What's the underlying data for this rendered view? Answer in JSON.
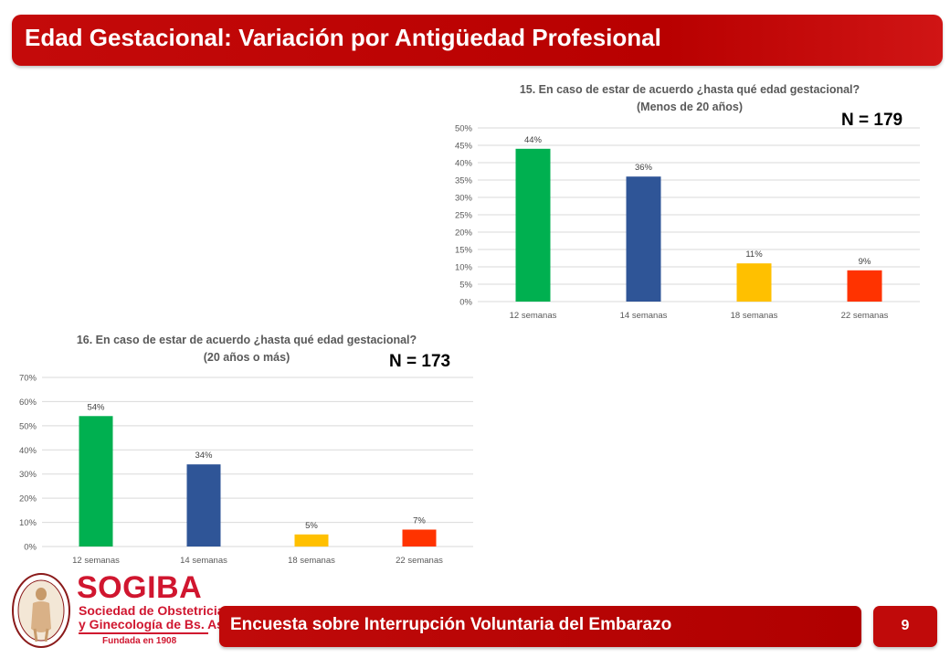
{
  "header": {
    "title": "Edad Gestacional: Variación por Antigüedad Profesional"
  },
  "chart_data": [
    {
      "type": "bar",
      "title_line1": "15. En caso de estar de acuerdo ¿hasta qué edad gestacional?",
      "title_line2": "(Menos de 20 años)",
      "n_label": "N = 179",
      "categories": [
        "12 semanas",
        "14 semanas",
        "18 semanas",
        "22 semanas"
      ],
      "values": [
        44,
        36,
        11,
        9
      ],
      "value_labels": [
        "44%",
        "36%",
        "11%",
        "9%"
      ],
      "colors": [
        "#00b050",
        "#2f5597",
        "#ffc000",
        "#ff3300"
      ],
      "ylim": [
        0,
        50
      ],
      "yticks": [
        0,
        5,
        10,
        15,
        20,
        25,
        30,
        35,
        40,
        45,
        50
      ],
      "ytick_labels": [
        "0%",
        "5%",
        "10%",
        "15%",
        "20%",
        "25%",
        "30%",
        "35%",
        "40%",
        "45%",
        "50%"
      ],
      "grid": true
    },
    {
      "type": "bar",
      "title_line1": "16. En caso de estar de acuerdo ¿hasta qué edad gestacional?",
      "title_line2": "(20 años o más)",
      "n_label": "N = 173",
      "categories": [
        "12 semanas",
        "14 semanas",
        "18 semanas",
        "22 semanas"
      ],
      "values": [
        54,
        34,
        5,
        7
      ],
      "value_labels": [
        "54%",
        "34%",
        "5%",
        "7%"
      ],
      "colors": [
        "#00b050",
        "#2f5597",
        "#ffc000",
        "#ff3300"
      ],
      "ylim": [
        0,
        70
      ],
      "yticks": [
        0,
        10,
        20,
        30,
        40,
        50,
        60,
        70
      ],
      "ytick_labels": [
        "0%",
        "10%",
        "20%",
        "30%",
        "40%",
        "50%",
        "60%",
        "70%"
      ],
      "grid": true
    }
  ],
  "logo": {
    "name": "SOGIBA",
    "line1": "Sociedad de Obstetricia",
    "line2": "y Ginecología de Bs. As.",
    "founded": "Fundada en 1908"
  },
  "footer": {
    "text": "Encuesta sobre Interrupción Voluntaria del Embarazo",
    "page": "9"
  }
}
